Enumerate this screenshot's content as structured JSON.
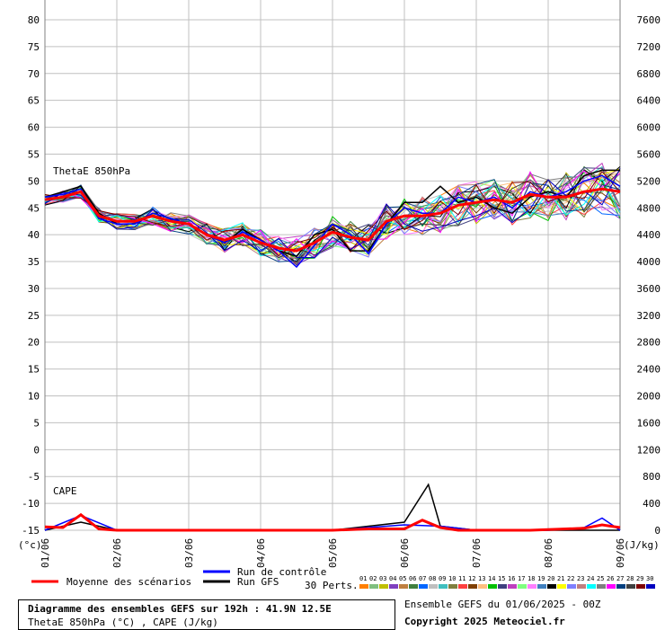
{
  "chart_data": {
    "type": "line",
    "left_axis": {
      "min": -15,
      "max": 80,
      "step": 5,
      "ticks": [
        80,
        75,
        70,
        65,
        60,
        55,
        50,
        45,
        40,
        35,
        30,
        25,
        20,
        15,
        10,
        5,
        0,
        -5,
        -10,
        -15
      ],
      "unit": "(°c)"
    },
    "right_axis": {
      "min": 0,
      "max": 7600,
      "step": 400,
      "unit": "(J/kg)"
    },
    "x_dates": [
      "01/06",
      "02/06",
      "03/06",
      "04/06",
      "05/06",
      "06/06",
      "07/06",
      "08/06",
      "09/06"
    ],
    "x_range_hours": [
      0,
      192
    ],
    "grid": true,
    "thetae_label": "ThetaE 850hPa",
    "cape_label": "CAPE",
    "series": [
      {
        "name": "Moyenne des scénarios",
        "color": "#ff0000",
        "thetae_x": [
          0,
          6,
          12,
          18,
          24,
          30,
          36,
          42,
          48,
          54,
          60,
          66,
          72,
          78,
          84,
          90,
          96,
          102,
          108,
          114,
          120,
          126,
          132,
          138,
          144,
          150,
          156,
          162,
          168,
          174,
          180,
          186,
          192
        ],
        "thetae": [
          46.5,
          47,
          48,
          43.5,
          42.5,
          42.5,
          43.5,
          42.5,
          42,
          40,
          39,
          40,
          38.5,
          37.5,
          37,
          38.5,
          40.5,
          39.5,
          39,
          42.5,
          43.5,
          43.5,
          44,
          45.5,
          46,
          46.5,
          46,
          47.5,
          47,
          47,
          48,
          48.5,
          48
        ],
        "cape_x": [
          0,
          6,
          12,
          18,
          24,
          96,
          108,
          120,
          126,
          132,
          138,
          144,
          162,
          168,
          174,
          180,
          186,
          192
        ],
        "cape": [
          50,
          40,
          230,
          20,
          0,
          0,
          20,
          20,
          150,
          40,
          0,
          0,
          0,
          10,
          20,
          30,
          80,
          40
        ]
      },
      {
        "name": "Run de contrôle",
        "color": "#0000ff",
        "thetae_x": [
          0,
          6,
          12,
          18,
          24,
          30,
          36,
          42,
          48,
          54,
          60,
          66,
          72,
          78,
          84,
          90,
          96,
          102,
          108,
          114,
          120,
          126,
          132,
          138,
          144,
          150,
          156,
          162,
          168,
          174,
          180,
          186,
          192
        ],
        "thetae": [
          47,
          47.5,
          48.5,
          43,
          42,
          42,
          44,
          43,
          42,
          40,
          38.5,
          40.5,
          39,
          37,
          34,
          38,
          42,
          40,
          36.5,
          42,
          45,
          44,
          44,
          47,
          46,
          47,
          45,
          48,
          47,
          48,
          50,
          51,
          49
        ],
        "cape_x": [
          0,
          12,
          24,
          96,
          120,
          132,
          144,
          168,
          180,
          186,
          192
        ],
        "cape": [
          0,
          220,
          0,
          0,
          80,
          60,
          0,
          0,
          40,
          180,
          0
        ]
      },
      {
        "name": "Run GFS",
        "color": "#000000",
        "thetae_x": [
          0,
          6,
          12,
          18,
          24,
          30,
          36,
          42,
          48,
          54,
          60,
          66,
          72,
          78,
          84,
          90,
          96,
          102,
          108,
          114,
          120,
          126,
          132,
          138,
          144,
          150,
          156,
          162,
          168,
          174,
          180,
          186,
          192
        ],
        "thetae": [
          47,
          48,
          49,
          44,
          42,
          42,
          44,
          43,
          42,
          40,
          38.5,
          41,
          39,
          37,
          36,
          40,
          41,
          37,
          37,
          42,
          46,
          46,
          49,
          46,
          47,
          45,
          44,
          47,
          48,
          47,
          51,
          52,
          52
        ],
        "cape_x": [
          0,
          12,
          24,
          96,
          120,
          128,
          132,
          144,
          192
        ],
        "cape": [
          0,
          120,
          0,
          0,
          120,
          680,
          60,
          0,
          0
        ]
      }
    ],
    "perturbations_label": "30 Perts.",
    "perturbations": [
      {
        "id": "01",
        "color": "#ff7f00"
      },
      {
        "id": "02",
        "color": "#7fbf7f"
      },
      {
        "id": "03",
        "color": "#bfbf00"
      },
      {
        "id": "04",
        "color": "#7f3fbf"
      },
      {
        "id": "05",
        "color": "#bf7f3f"
      },
      {
        "id": "06",
        "color": "#3f7f3f"
      },
      {
        "id": "07",
        "color": "#0066ff"
      },
      {
        "id": "08",
        "color": "#bfbfbf"
      },
      {
        "id": "09",
        "color": "#3fbfbf"
      },
      {
        "id": "10",
        "color": "#7f7f3f"
      },
      {
        "id": "11",
        "color": "#ff3f3f"
      },
      {
        "id": "12",
        "color": "#7f3f00"
      },
      {
        "id": "13",
        "color": "#ffbf7f"
      },
      {
        "id": "14",
        "color": "#00bf00"
      },
      {
        "id": "15",
        "color": "#3f3f7f"
      },
      {
        "id": "16",
        "color": "#bf3fbf"
      },
      {
        "id": "17",
        "color": "#7fff7f"
      },
      {
        "id": "18",
        "color": "#ff7fff"
      },
      {
        "id": "19",
        "color": "#3f7fbf"
      },
      {
        "id": "20",
        "color": "#000000"
      },
      {
        "id": "21",
        "color": "#ffff00"
      },
      {
        "id": "22",
        "color": "#7f7fff"
      },
      {
        "id": "23",
        "color": "#bf7f7f"
      },
      {
        "id": "24",
        "color": "#00ffff"
      },
      {
        "id": "25",
        "color": "#7f7f7f"
      },
      {
        "id": "26",
        "color": "#ff00ff"
      },
      {
        "id": "27",
        "color": "#003f7f"
      },
      {
        "id": "28",
        "color": "#3f3f3f"
      },
      {
        "id": "29",
        "color": "#7f0000"
      },
      {
        "id": "30",
        "color": "#0000bf"
      }
    ]
  },
  "legend": {
    "mean_label": "Moyenne des scénarios",
    "control_label": "Run de contrôle",
    "gfs_label": "Run GFS"
  },
  "info": {
    "title": "Diagramme des ensembles GEFS sur 192h : 41.9N 12.5E",
    "subtitle": "ThetaE 850hPa (°C) , CAPE (J/kg)",
    "ensemble_date": "Ensemble GEFS du 01/06/2025 - 00Z",
    "copyright": "Copyright 2025 Meteociel.fr"
  },
  "colors": {
    "grid": "#c0c0c0",
    "mean": "#ff0000",
    "control": "#0000ff",
    "gfs": "#000000"
  }
}
